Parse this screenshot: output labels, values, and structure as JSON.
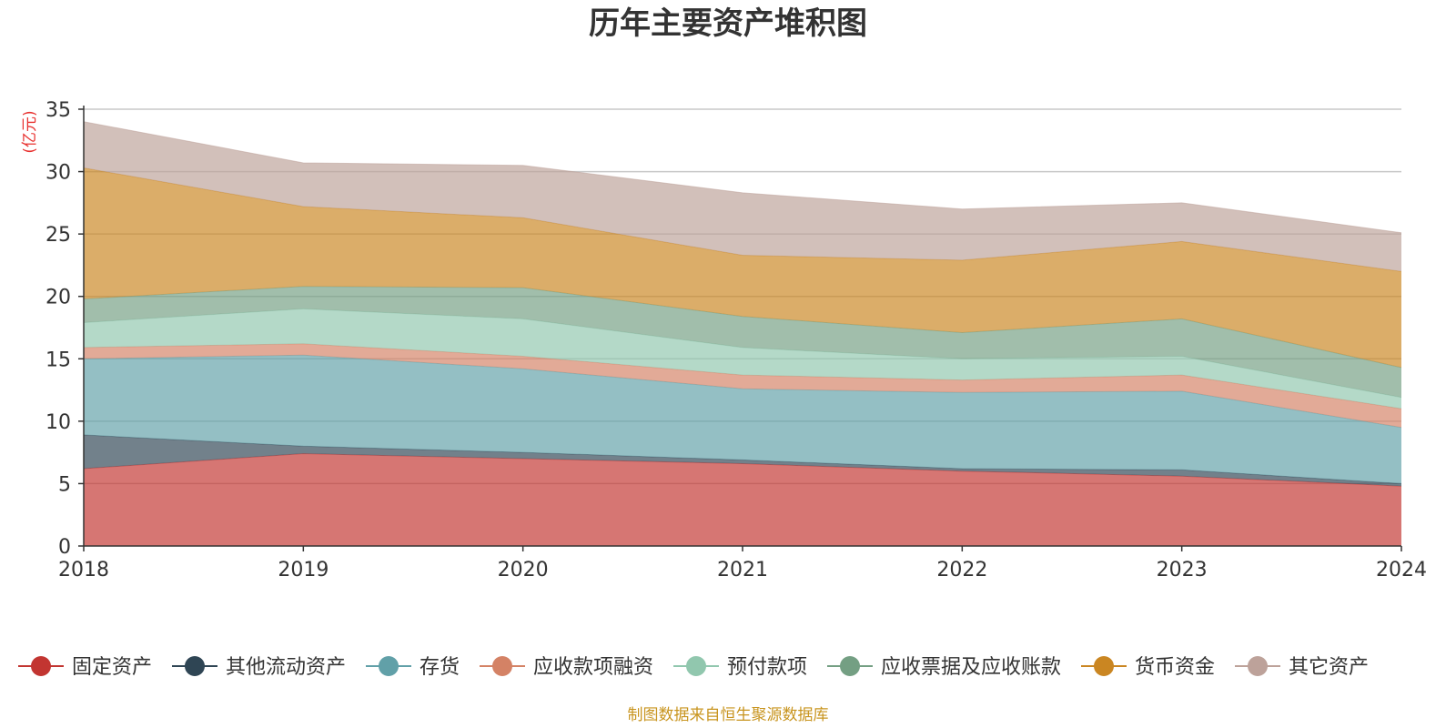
{
  "chart_data": {
    "type": "area",
    "stacked": true,
    "title": "历年主要资产堆积图",
    "unit_label": "(亿元)",
    "x": [
      "2018",
      "2019",
      "2020",
      "2021",
      "2022",
      "2023",
      "2024"
    ],
    "ylim": [
      0,
      35
    ],
    "yticks": [
      "0",
      "5",
      "10",
      "15",
      "20",
      "25",
      "30",
      "35"
    ],
    "grid": true,
    "legend_position": "bottom",
    "series": [
      {
        "name": "固定资产",
        "color": "#c23531",
        "values": [
          6.2,
          7.4,
          7.0,
          6.6,
          6.0,
          5.6,
          4.8
        ]
      },
      {
        "name": "其他流动资产",
        "color": "#2f4554",
        "values": [
          2.7,
          0.6,
          0.5,
          0.3,
          0.2,
          0.5,
          0.2
        ]
      },
      {
        "name": "存货",
        "color": "#61a0a8",
        "values": [
          6.1,
          7.3,
          6.7,
          5.7,
          6.1,
          6.3,
          4.5
        ]
      },
      {
        "name": "应收款项融资",
        "color": "#d48265",
        "values": [
          0.9,
          0.9,
          1.0,
          1.1,
          1.0,
          1.3,
          1.5
        ]
      },
      {
        "name": "预付款项",
        "color": "#91c7ae",
        "values": [
          2.0,
          2.8,
          3.0,
          2.2,
          1.7,
          1.5,
          0.9
        ]
      },
      {
        "name": "应收票据及应收账款",
        "color": "#749f83",
        "values": [
          1.9,
          1.8,
          2.5,
          2.5,
          2.1,
          3.0,
          2.4
        ]
      },
      {
        "name": "货币资金",
        "color": "#ca8622",
        "values": [
          10.5,
          6.4,
          5.6,
          4.9,
          5.8,
          6.2,
          7.7
        ]
      },
      {
        "name": "其它资产",
        "color": "#bda29a",
        "values": [
          3.7,
          3.5,
          4.2,
          5.0,
          4.1,
          3.1,
          3.1
        ]
      }
    ],
    "source": "制图数据来自恒生聚源数据库"
  }
}
